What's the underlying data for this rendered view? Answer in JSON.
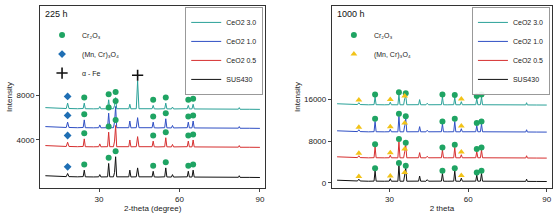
{
  "chart_data": [
    {
      "type": "line",
      "title": "225 h",
      "x_label": "2-theta (degree)",
      "y_label": "Intensity",
      "x": [
        10,
        14,
        17.8,
        18.3,
        18.8,
        22,
        24.1,
        24.5,
        24.9,
        28,
        29.9,
        30.3,
        30.7,
        33.2,
        33.6,
        34.0,
        35.4,
        35.8,
        36.2,
        36.6,
        39,
        41.1,
        41.5,
        41.9,
        43.9,
        44.4,
        44.9,
        47,
        49.8,
        50.2,
        50.6,
        52,
        54.5,
        54.9,
        55.3,
        57.0,
        57.4,
        57.8,
        60,
        62.9,
        63.3,
        63.7,
        64.7,
        65.1,
        65.5,
        70,
        75,
        80,
        82.0,
        82.3,
        82.6,
        86,
        90
      ],
      "xlim": [
        8,
        92
      ],
      "xticks": [
        30,
        60,
        90
      ],
      "ylim": [
        -300,
        16000
      ],
      "yticks": [
        4000,
        8000
      ],
      "grid": false,
      "legend": "upper right",
      "series": [
        {
          "name": "CeO2 3.0",
          "color": "#2aa198",
          "values": [
            6900,
            6850,
            6820,
            7300,
            6820,
            6800,
            6820,
            7300,
            6800,
            6790,
            6800,
            7000,
            6790,
            6800,
            7600,
            6800,
            6800,
            7100,
            7800,
            6800,
            6790,
            6800,
            7200,
            6790,
            6800,
            9300,
            6800,
            6780,
            6800,
            7100,
            6790,
            6780,
            6800,
            7300,
            6790,
            6780,
            6950,
            6780,
            6770,
            6800,
            7100,
            6780,
            6790,
            7200,
            6780,
            6770,
            6760,
            6750,
            6760,
            6900,
            6750,
            6750,
            6740
          ]
        },
        {
          "name": "CeO2 1.0",
          "color": "#2f4fc4",
          "values": [
            5200,
            5150,
            5120,
            5600,
            5120,
            5100,
            5120,
            5800,
            5100,
            5090,
            5100,
            5350,
            5090,
            5100,
            6400,
            5100,
            5100,
            5600,
            7000,
            5100,
            5090,
            5100,
            5700,
            5090,
            5100,
            6000,
            5100,
            5080,
            5100,
            5600,
            5090,
            5080,
            5100,
            5900,
            5090,
            5080,
            5300,
            5080,
            5070,
            5100,
            5600,
            5080,
            5090,
            5700,
            5080,
            5070,
            5060,
            5050,
            5060,
            5200,
            5050,
            5050,
            5040
          ]
        },
        {
          "name": "CeO2 0.5",
          "color": "#d62f2f",
          "values": [
            3500,
            3450,
            3420,
            3800,
            3420,
            3400,
            3420,
            4100,
            3400,
            3390,
            3400,
            3650,
            3390,
            3400,
            4700,
            3400,
            3400,
            3900,
            5300,
            3400,
            3390,
            3400,
            4000,
            3390,
            3400,
            4300,
            3400,
            3380,
            3400,
            3900,
            3390,
            3380,
            3400,
            4200,
            3390,
            3380,
            3600,
            3380,
            3370,
            3400,
            3900,
            3380,
            3390,
            4000,
            3380,
            3370,
            3360,
            3350,
            3360,
            3500,
            3350,
            3350,
            3340
          ]
        },
        {
          "name": "SUS430",
          "color": "#111111",
          "values": [
            800,
            750,
            720,
            1000,
            720,
            700,
            720,
            1300,
            700,
            690,
            700,
            900,
            690,
            700,
            1900,
            700,
            700,
            1100,
            2500,
            700,
            690,
            700,
            1300,
            690,
            700,
            1500,
            700,
            680,
            700,
            1200,
            690,
            680,
            700,
            1500,
            690,
            680,
            900,
            680,
            670,
            700,
            1200,
            680,
            690,
            1300,
            680,
            670,
            660,
            650,
            660,
            800,
            650,
            650,
            640
          ]
        },
        {
          "name": "Cr₂O₃",
          "type": "scatter",
          "marker": "circle",
          "color": "#1fa463",
          "x": [
            24.5,
            33.6,
            36.2,
            50.2,
            54.9,
            63.3,
            65.1,
            24.5,
            33.6,
            36.2,
            50.2,
            54.9,
            63.3,
            65.1,
            24.5,
            33.6,
            36.2,
            50.2,
            54.9,
            63.3,
            65.1,
            24.5,
            33.6,
            36.2,
            50.2,
            54.9,
            63.3,
            65.1
          ],
          "values": [
            7800,
            8100,
            8300,
            7600,
            7800,
            7600,
            7700,
            6300,
            6900,
            7500,
            6100,
            6400,
            6100,
            6200,
            4600,
            5200,
            5800,
            4400,
            4700,
            4400,
            4500,
            1800,
            2400,
            3000,
            1700,
            2000,
            1700,
            1800
          ]
        },
        {
          "name": "(Mn, Cr)₃O₄",
          "type": "scatter",
          "marker": "diamond",
          "color": "#1f6fb4",
          "x": [
            18.3,
            18.3,
            18.3,
            18.3
          ],
          "values": [
            7900,
            6200,
            4400,
            1600
          ]
        },
        {
          "name": "α - Fe",
          "type": "scatter",
          "marker": "cross",
          "color": "#111111",
          "x": [
            44.4
          ],
          "values": [
            9800
          ]
        }
      ]
    },
    {
      "type": "line",
      "title": "1000 h",
      "x_label": "2 theta",
      "y_label": "Intensity",
      "x": [
        10,
        14,
        17.8,
        18.3,
        18.8,
        22,
        24.1,
        24.5,
        24.9,
        28,
        29.9,
        30.3,
        30.7,
        33.2,
        33.6,
        34.0,
        35.4,
        35.8,
        36.2,
        36.6,
        39,
        41.1,
        41.5,
        41.9,
        43.9,
        44.4,
        44.9,
        47,
        49.8,
        50.2,
        50.6,
        52,
        54.5,
        54.9,
        55.3,
        57.0,
        57.4,
        57.8,
        60,
        62.9,
        63.3,
        63.7,
        64.7,
        65.1,
        65.5,
        70,
        75,
        80,
        82.0,
        82.3,
        82.6,
        86,
        90
      ],
      "xlim": [
        8,
        92
      ],
      "xticks": [
        30,
        60,
        90
      ],
      "ylim": [
        -1000,
        34000
      ],
      "yticks": [
        0,
        8000,
        16000
      ],
      "grid": false,
      "legend": "upper right",
      "series": [
        {
          "name": "CeO2 3.0",
          "color": "#2aa198",
          "values": [
            15200,
            15100,
            15050,
            15400,
            15050,
            15000,
            15030,
            16500,
            15020,
            15000,
            15020,
            15500,
            15010,
            15000,
            16900,
            15010,
            15000,
            16200,
            16700,
            15010,
            15000,
            15020,
            16000,
            15010,
            15000,
            15300,
            15010,
            15000,
            15020,
            16500,
            15010,
            15000,
            15020,
            16400,
            15010,
            15000,
            15600,
            15010,
            15000,
            15020,
            16200,
            15010,
            15020,
            16500,
            15010,
            15000,
            14980,
            14970,
            14980,
            15400,
            14970,
            14960,
            14950
          ]
        },
        {
          "name": "CeO2 1.0",
          "color": "#2f4fc4",
          "values": [
            10000,
            9900,
            9850,
            10200,
            9850,
            9800,
            9830,
            11800,
            9820,
            9800,
            9820,
            10300,
            9810,
            9800,
            12800,
            9810,
            9800,
            11000,
            12300,
            9810,
            9800,
            9820,
            10800,
            9810,
            9800,
            10100,
            9810,
            9800,
            9820,
            11300,
            9810,
            9800,
            9820,
            11800,
            9810,
            9800,
            10400,
            9810,
            9800,
            9820,
            11000,
            9810,
            9820,
            11300,
            9810,
            9800,
            9780,
            9770,
            9780,
            10200,
            9770,
            9760,
            9750
          ]
        },
        {
          "name": "CeO2 0.5",
          "color": "#d62f2f",
          "values": [
            5000,
            4900,
            4850,
            5200,
            4850,
            4800,
            4830,
            6900,
            4820,
            4800,
            4820,
            5300,
            4810,
            4800,
            7900,
            4810,
            4800,
            6000,
            7200,
            4810,
            4800,
            4820,
            5800,
            4810,
            4800,
            5100,
            4810,
            4800,
            4820,
            6300,
            4810,
            4800,
            4820,
            6800,
            4810,
            4800,
            5400,
            4810,
            4800,
            4820,
            6000,
            4810,
            4820,
            6300,
            4810,
            4800,
            4780,
            4770,
            4780,
            5200,
            4770,
            4760,
            4750
          ]
        },
        {
          "name": "SUS430",
          "color": "#111111",
          "values": [
            500,
            400,
            350,
            700,
            350,
            300,
            330,
            2300,
            320,
            300,
            320,
            800,
            310,
            300,
            3300,
            310,
            300,
            1500,
            2800,
            310,
            300,
            320,
            1300,
            310,
            300,
            600,
            310,
            300,
            320,
            1800,
            310,
            300,
            320,
            2300,
            310,
            300,
            900,
            310,
            300,
            320,
            1500,
            310,
            320,
            1800,
            310,
            300,
            280,
            270,
            280,
            700,
            270,
            260,
            250
          ]
        },
        {
          "name": "Cr₂O₃",
          "type": "scatter",
          "marker": "circle",
          "color": "#1fa463",
          "x": [
            24.5,
            33.6,
            36.2,
            50.2,
            54.9,
            63.3,
            65.1,
            24.5,
            33.6,
            36.2,
            50.2,
            54.9,
            63.3,
            65.1,
            24.5,
            33.6,
            36.2,
            50.2,
            54.9,
            63.3,
            65.1,
            24.5,
            33.6,
            36.2,
            50.2,
            54.9,
            63.3,
            65.1
          ],
          "values": [
            17000,
            17400,
            17200,
            17000,
            16900,
            16700,
            17000,
            12300,
            13300,
            12800,
            11800,
            12300,
            11500,
            11800,
            7400,
            8400,
            7700,
            6800,
            7300,
            6500,
            6800,
            2800,
            3800,
            3300,
            2300,
            2800,
            2000,
            2300
          ]
        },
        {
          "name": "(Mn, Cr)₃O₄",
          "type": "scatter",
          "marker": "triangle",
          "color": "#f2c318",
          "x": [
            18.3,
            30.3,
            35.8,
            57.4,
            18.3,
            30.3,
            35.8,
            57.4,
            18.3,
            30.3,
            35.8,
            57.4,
            18.3,
            30.3,
            35.8,
            57.4
          ],
          "values": [
            15900,
            16000,
            16700,
            16100,
            10700,
            10800,
            11500,
            10900,
            5700,
            5800,
            6500,
            5900,
            1200,
            1300,
            2000,
            1400
          ]
        }
      ]
    }
  ]
}
